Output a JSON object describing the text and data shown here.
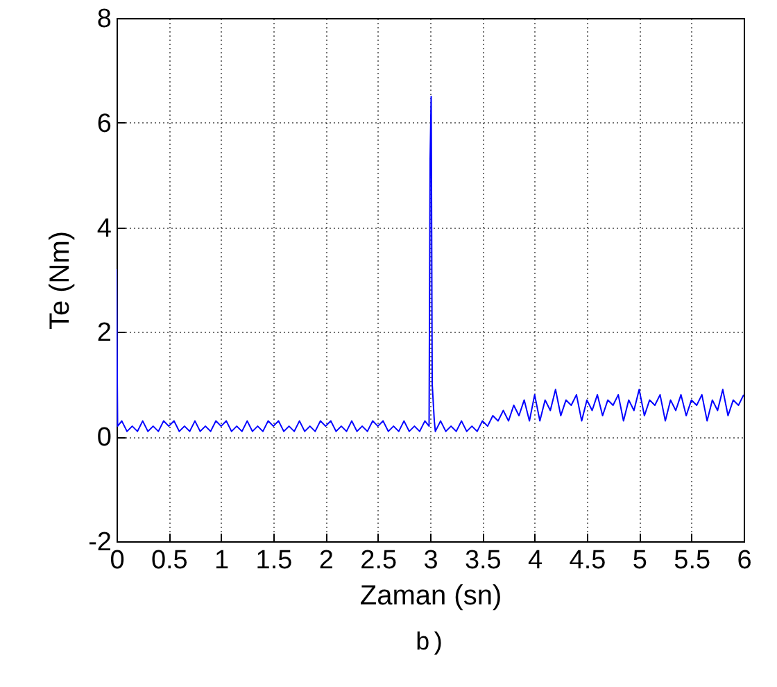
{
  "chart_data": {
    "type": "line",
    "xlabel": "Zaman (sn)",
    "ylabel": "Te (Nm)",
    "annotations": [
      "b)"
    ],
    "xlim": [
      0,
      6
    ],
    "xticks": [
      0,
      0.5,
      1,
      1.5,
      2,
      2.5,
      3,
      3.5,
      4,
      4.5,
      5,
      5.5,
      6
    ],
    "ylim": [
      -2,
      8
    ],
    "yticks": [
      -2,
      0,
      2,
      4,
      6,
      8
    ],
    "grid": true,
    "line_style": "solid",
    "x": [
      0,
      0.01,
      0.05,
      0.1,
      0.15,
      0.2,
      0.25,
      0.3,
      0.35,
      0.4,
      0.45,
      0.5,
      0.55,
      0.6,
      0.65,
      0.7,
      0.75,
      0.8,
      0.85,
      0.9,
      0.95,
      1,
      1.05,
      1.1,
      1.15,
      1.2,
      1.25,
      1.3,
      1.35,
      1.4,
      1.45,
      1.5,
      1.55,
      1.6,
      1.65,
      1.7,
      1.75,
      1.8,
      1.85,
      1.9,
      1.95,
      2,
      2.05,
      2.1,
      2.15,
      2.2,
      2.25,
      2.3,
      2.35,
      2.4,
      2.45,
      2.5,
      2.55,
      2.6,
      2.65,
      2.7,
      2.75,
      2.8,
      2.85,
      2.9,
      2.95,
      2.99,
      3,
      3.01,
      3.02,
      3.04,
      3.05,
      3.1,
      3.15,
      3.2,
      3.25,
      3.3,
      3.35,
      3.4,
      3.45,
      3.5,
      3.55,
      3.6,
      3.65,
      3.7,
      3.75,
      3.8,
      3.85,
      3.9,
      3.95,
      4,
      4.05,
      4.1,
      4.15,
      4.2,
      4.25,
      4.3,
      4.35,
      4.4,
      4.45,
      4.5,
      4.55,
      4.6,
      4.65,
      4.7,
      4.75,
      4.8,
      4.85,
      4.9,
      4.95,
      5,
      5.05,
      5.1,
      5.15,
      5.2,
      5.25,
      5.3,
      5.35,
      5.4,
      5.45,
      5.5,
      5.55,
      5.6,
      5.65,
      5.7,
      5.75,
      5.8,
      5.85,
      5.9,
      5.95,
      6
    ],
    "series": [
      {
        "color": "#0000ff",
        "values": [
          3.2,
          0.2,
          0.3,
          0.1,
          0.2,
          0.1,
          0.3,
          0.1,
          0.2,
          0.1,
          0.3,
          0.2,
          0.3,
          0.1,
          0.2,
          0.1,
          0.3,
          0.1,
          0.2,
          0.1,
          0.3,
          0.2,
          0.3,
          0.1,
          0.2,
          0.1,
          0.3,
          0.1,
          0.2,
          0.1,
          0.3,
          0.2,
          0.3,
          0.1,
          0.2,
          0.1,
          0.3,
          0.1,
          0.2,
          0.1,
          0.3,
          0.2,
          0.3,
          0.1,
          0.2,
          0.1,
          0.3,
          0.1,
          0.2,
          0.1,
          0.3,
          0.2,
          0.3,
          0.1,
          0.2,
          0.1,
          0.3,
          0.1,
          0.2,
          0.1,
          0.3,
          0.2,
          5.3,
          6.5,
          1.0,
          0.3,
          0.1,
          0.3,
          0.1,
          0.2,
          0.1,
          0.3,
          0.1,
          0.2,
          0.1,
          0.3,
          0.2,
          0.4,
          0.3,
          0.5,
          0.3,
          0.6,
          0.4,
          0.7,
          0.3,
          0.8,
          0.3,
          0.7,
          0.5,
          0.9,
          0.4,
          0.7,
          0.6,
          0.8,
          0.3,
          0.7,
          0.5,
          0.8,
          0.4,
          0.7,
          0.6,
          0.8,
          0.3,
          0.7,
          0.5,
          0.9,
          0.4,
          0.7,
          0.6,
          0.8,
          0.3,
          0.7,
          0.5,
          0.8,
          0.4,
          0.7,
          0.6,
          0.8,
          0.3,
          0.7,
          0.5,
          0.9,
          0.4,
          0.7,
          0.6,
          0.8
        ]
      }
    ]
  }
}
